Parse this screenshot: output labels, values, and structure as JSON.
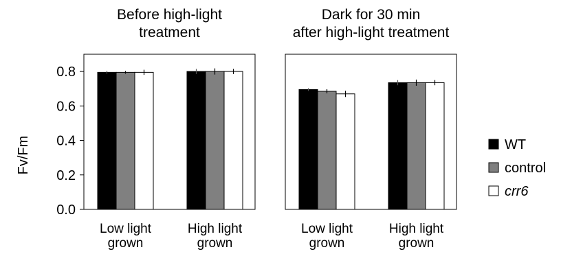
{
  "chart_data": {
    "type": "bar",
    "ylabel": "Fv/Fm",
    "ylim": [
      0,
      0.9
    ],
    "yticks": [
      "0.0",
      "0.2",
      "0.4",
      "0.6",
      "0.8"
    ],
    "ytick_values": [
      0,
      0.2,
      0.4,
      0.6,
      0.8
    ],
    "legend": {
      "placement": "right",
      "entries": [
        {
          "name": "WT",
          "color": "#000000",
          "italic": false
        },
        {
          "name": "control",
          "color": "#808080",
          "italic": false
        },
        {
          "name": "crr6",
          "color": "#ffffff",
          "italic": true
        }
      ]
    },
    "panels": [
      {
        "title_lines": [
          "Before high-light",
          "treatment"
        ],
        "categories": [
          {
            "lines": [
              "Low light",
              "grown"
            ]
          },
          {
            "lines": [
              "High light",
              "grown"
            ]
          }
        ],
        "series": [
          {
            "name": "WT",
            "values": [
              0.795,
              0.8
            ],
            "errors": [
              0.008,
              0.015
            ]
          },
          {
            "name": "control",
            "values": [
              0.795,
              0.8
            ],
            "errors": [
              0.008,
              0.018
            ]
          },
          {
            "name": "crr6",
            "values": [
              0.795,
              0.8
            ],
            "errors": [
              0.015,
              0.015
            ]
          }
        ]
      },
      {
        "title_lines": [
          "Dark for 30 min",
          "after high-light treatment"
        ],
        "categories": [
          {
            "lines": [
              "Low light",
              "grown"
            ]
          },
          {
            "lines": [
              "High light",
              "grown"
            ]
          }
        ],
        "series": [
          {
            "name": "WT",
            "values": [
              0.695,
              0.735
            ],
            "errors": [
              0.008,
              0.015
            ]
          },
          {
            "name": "control",
            "values": [
              0.685,
              0.735
            ],
            "errors": [
              0.012,
              0.018
            ]
          },
          {
            "name": "crr6",
            "values": [
              0.67,
              0.735
            ],
            "errors": [
              0.018,
              0.015
            ]
          }
        ]
      }
    ]
  }
}
